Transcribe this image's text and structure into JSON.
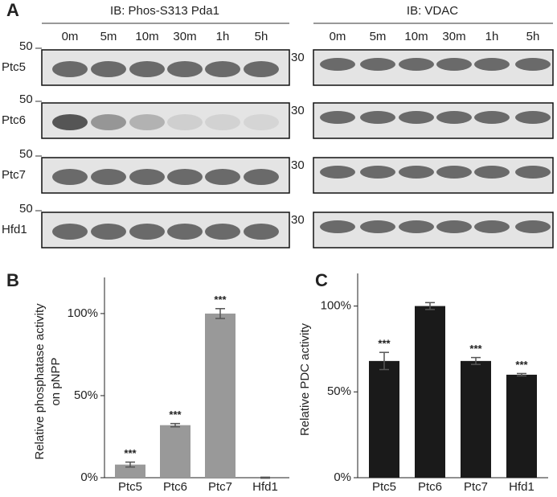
{
  "panel_a": {
    "label": "A",
    "left_blot": {
      "header": "IB: Phos-S313 Pda1",
      "lanes": [
        "0m",
        "5m",
        "10m",
        "30m",
        "1h",
        "5h"
      ]
    },
    "right_blot": {
      "header": "IB: VDAC",
      "lanes": [
        "0m",
        "5m",
        "10m",
        "30m",
        "1h",
        "5h"
      ]
    },
    "rows": [
      {
        "label": "Ptc5",
        "marker_left": "50",
        "marker_right": "30"
      },
      {
        "label": "Ptc6",
        "marker_left": "50",
        "marker_right": "30"
      },
      {
        "label": "Ptc7",
        "marker_left": "50",
        "marker_right": "30"
      },
      {
        "label": "Hfd1",
        "marker_left": "50",
        "marker_right": "30"
      }
    ]
  },
  "chart_data": [
    {
      "type": "bar",
      "panel": "B",
      "y_label": [
        "Relative phosphatase activity",
        "on pNPP"
      ],
      "categories": [
        "Ptc5",
        "Ptc6",
        "Ptc7",
        "Hfd1"
      ],
      "values": [
        8,
        32,
        100,
        0
      ],
      "errors": [
        1.5,
        1,
        3,
        0.3
      ],
      "annotations": [
        "***",
        "***",
        "***",
        null
      ],
      "color": "#999999",
      "ylim": [
        0,
        122
      ],
      "yticks": [
        {
          "value": 0,
          "label": "0%"
        },
        {
          "value": 50,
          "label": "50%"
        },
        {
          "value": 100,
          "label": "100%"
        }
      ]
    },
    {
      "type": "bar",
      "panel": "C",
      "y_label": [
        "Relative PDC activity"
      ],
      "categories": [
        "Ptc5",
        "Ptc6",
        "Ptc7",
        "Hfd1"
      ],
      "values": [
        68,
        100,
        68,
        60
      ],
      "errors": [
        5,
        2,
        2,
        0.7
      ],
      "annotations": [
        "***",
        null,
        "***",
        "***"
      ],
      "color": "#1a1a1a",
      "ylim": [
        0,
        119
      ],
      "yticks": [
        {
          "value": 0,
          "label": "0%"
        },
        {
          "value": 50,
          "label": "50%"
        },
        {
          "value": 100,
          "label": "100%"
        }
      ]
    }
  ]
}
